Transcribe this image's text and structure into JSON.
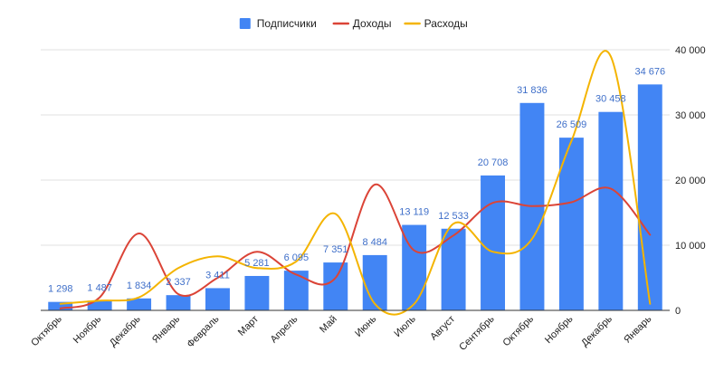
{
  "chart_data": {
    "type": "bar",
    "categories": [
      "Октябрь",
      "Ноябрь",
      "Декабрь",
      "Январь",
      "Февраль",
      "Март",
      "Апрель",
      "Май",
      "Июнь",
      "Июль",
      "Август",
      "Сентябрь",
      "Октябрь",
      "Ноябрь",
      "Декабрь",
      "Январь"
    ],
    "series": [
      {
        "name": "Подписчики",
        "type": "bar",
        "color": "#4285f4",
        "values": [
          1298,
          1487,
          1834,
          2337,
          3411,
          5281,
          6095,
          7351,
          8484,
          13119,
          12533,
          20708,
          31836,
          26509,
          30458,
          34676
        ],
        "data_labels": [
          "1 298",
          "1 487",
          "1 834",
          "2 337",
          "3 411",
          "5 281",
          "6 095",
          "7 351",
          "8 484",
          "13 119",
          "12 533",
          "20 708",
          "31 836",
          "26 509",
          "30 458",
          "34 676"
        ]
      },
      {
        "name": "Доходы",
        "type": "line",
        "smooth": true,
        "color": "#db4437",
        "values": [
          300,
          2000,
          11800,
          2500,
          5000,
          9000,
          5500,
          5000,
          19300,
          9200,
          11500,
          16500,
          16000,
          16600,
          18700,
          11600
        ]
      },
      {
        "name": "Расходы",
        "type": "line",
        "smooth": true,
        "color": "#f4b400",
        "values": [
          1000,
          1500,
          2000,
          6500,
          8300,
          6500,
          7500,
          14800,
          1000,
          1000,
          13300,
          9000,
          11000,
          26000,
          39000,
          1000
        ]
      }
    ],
    "yaxis": {
      "position": "right",
      "ylim": [
        0,
        40000
      ],
      "ticks": [
        0,
        10000,
        20000,
        30000,
        40000
      ],
      "tick_labels": [
        "0",
        "10 000",
        "20 000",
        "30 000",
        "40 000"
      ]
    },
    "grid": true,
    "legend": "top-center",
    "title": "",
    "xlabel": "",
    "ylabel": ""
  }
}
